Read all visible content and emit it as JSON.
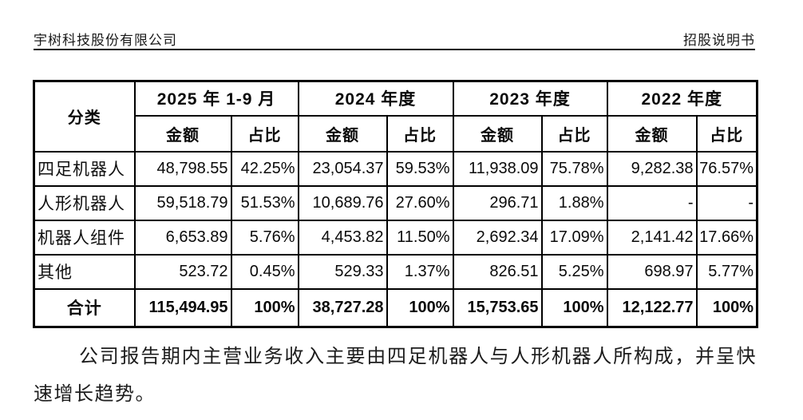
{
  "header": {
    "company": "宇树科技股份有限公司",
    "doc_type": "招股说明书"
  },
  "table": {
    "corner_label": "分类",
    "periods": [
      "2025 年 1-9 月",
      "2024 年度",
      "2023 年度",
      "2022 年度"
    ],
    "sub_headers": {
      "amount": "金额",
      "ratio": "占比"
    },
    "rows": [
      {
        "label": "四足机器人",
        "cells": [
          "48,798.55",
          "42.25%",
          "23,054.37",
          "59.53%",
          "11,938.09",
          "75.78%",
          "9,282.38",
          "76.57%"
        ]
      },
      {
        "label": "人形机器人",
        "cells": [
          "59,518.79",
          "51.53%",
          "10,689.76",
          "27.60%",
          "296.71",
          "1.88%",
          "-",
          "-"
        ]
      },
      {
        "label": "机器人组件",
        "cells": [
          "6,653.89",
          "5.76%",
          "4,453.82",
          "11.50%",
          "2,692.34",
          "17.09%",
          "2,141.42",
          "17.66%"
        ]
      },
      {
        "label": "其他",
        "cells": [
          "523.72",
          "0.45%",
          "529.33",
          "1.37%",
          "826.51",
          "5.25%",
          "698.97",
          "5.77%"
        ]
      }
    ],
    "total": {
      "label": "合计",
      "cells": [
        "115,494.95",
        "100%",
        "38,727.28",
        "100%",
        "15,753.65",
        "100%",
        "12,122.77",
        "100%"
      ]
    }
  },
  "paragraph": "公司报告期内主营业务收入主要由四足机器人与人形机器人所构成，并呈快速增长趋势。"
}
